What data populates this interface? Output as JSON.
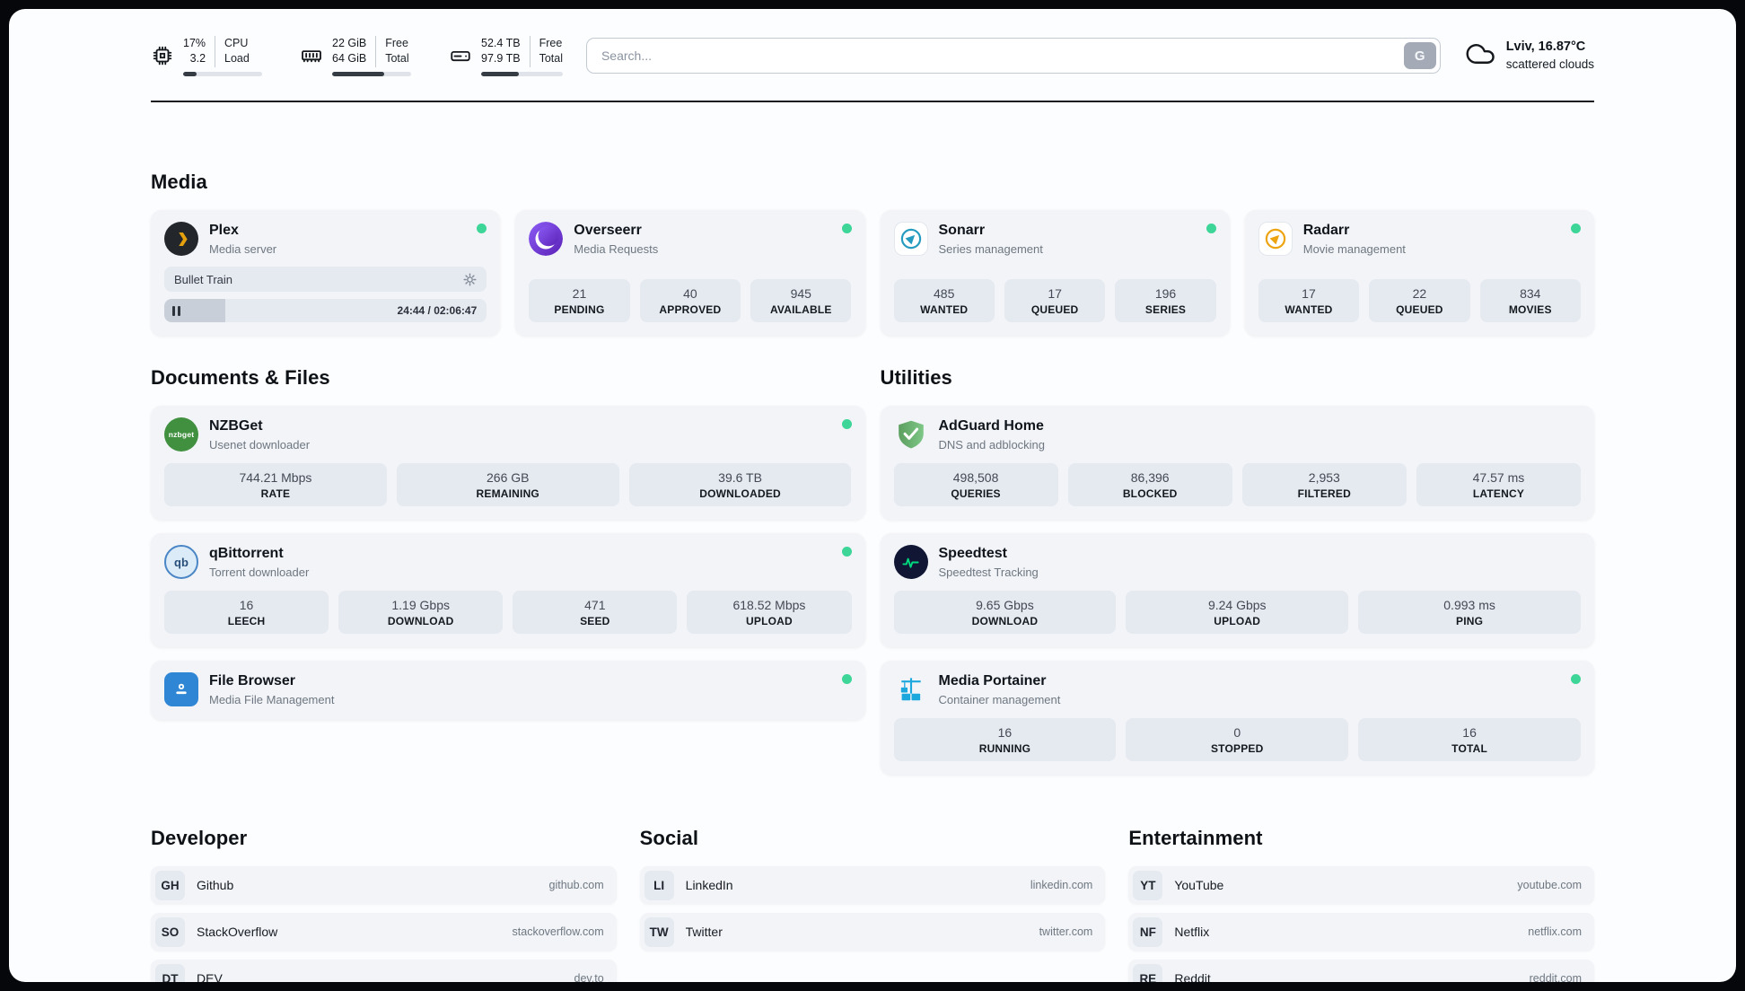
{
  "colors": {
    "status-online": "#3ed598",
    "plex-brand": "#e5a00d",
    "sonarr-brand": "#259bbf",
    "radarr-brand": "#eda410",
    "adguard-brand": "#67b279",
    "speedtest-pulse": "#00d97e",
    "portainer-brand": "#1ca8dd"
  },
  "topbar": {
    "cpu": {
      "icon": "cpu-chip-icon",
      "values": [
        "17%",
        "3.2"
      ],
      "labels": [
        "CPU",
        "Load"
      ],
      "usage_percent": 17
    },
    "ram": {
      "icon": "memory-icon",
      "values": [
        "22 GiB",
        "64 GiB"
      ],
      "labels": [
        "Free",
        "Total"
      ],
      "usage_percent": 66
    },
    "disk": {
      "icon": "hard-drive-icon",
      "values": [
        "52.4 TB",
        "97.9 TB"
      ],
      "labels": [
        "Free",
        "Total"
      ],
      "usage_percent": 46
    },
    "search": {
      "placeholder": "Search...",
      "button_label": "G"
    },
    "weather": {
      "icon": "cloud-icon",
      "location": "Lviv, 16.87°C",
      "condition": "scattered clouds"
    }
  },
  "media": {
    "title": "Media",
    "plex": {
      "name": "Plex",
      "subtitle": "Media server",
      "online": true,
      "now_playing": {
        "title": "Bullet Train",
        "elapsed": "24:44",
        "duration": "02:06:47",
        "time_display": "24:44 / 02:06:47",
        "progress_percent": 19
      }
    },
    "overseerr": {
      "name": "Overseerr",
      "subtitle": "Media Requests",
      "online": true,
      "stats": [
        {
          "value": "21",
          "label": "PENDING"
        },
        {
          "value": "40",
          "label": "APPROVED"
        },
        {
          "value": "945",
          "label": "AVAILABLE"
        }
      ]
    },
    "sonarr": {
      "name": "Sonarr",
      "subtitle": "Series management",
      "online": true,
      "stats": [
        {
          "value": "485",
          "label": "WANTED"
        },
        {
          "value": "17",
          "label": "QUEUED"
        },
        {
          "value": "196",
          "label": "SERIES"
        }
      ]
    },
    "radarr": {
      "name": "Radarr",
      "subtitle": "Movie management",
      "online": true,
      "stats": [
        {
          "value": "17",
          "label": "WANTED"
        },
        {
          "value": "22",
          "label": "QUEUED"
        },
        {
          "value": "834",
          "label": "MOVIES"
        }
      ]
    }
  },
  "documents": {
    "title": "Documents & Files",
    "nzbget": {
      "name": "NZBGet",
      "subtitle": "Usenet downloader",
      "online": true,
      "stats": [
        {
          "value": "744.21 Mbps",
          "label": "RATE"
        },
        {
          "value": "266 GB",
          "label": "REMAINING"
        },
        {
          "value": "39.6 TB",
          "label": "DOWNLOADED"
        }
      ]
    },
    "qbittorrent": {
      "name": "qBittorrent",
      "subtitle": "Torrent downloader",
      "online": true,
      "stats": [
        {
          "value": "16",
          "label": "LEECH"
        },
        {
          "value": "1.19 Gbps",
          "label": "DOWNLOAD"
        },
        {
          "value": "471",
          "label": "SEED"
        },
        {
          "value": "618.52 Mbps",
          "label": "UPLOAD"
        }
      ]
    },
    "filebrowser": {
      "name": "File Browser",
      "subtitle": "Media File Management",
      "online": true
    }
  },
  "utilities": {
    "title": "Utilities",
    "adguard": {
      "name": "AdGuard Home",
      "subtitle": "DNS and adblocking",
      "stats": [
        {
          "value": "498,508",
          "label": "QUERIES"
        },
        {
          "value": "86,396",
          "label": "BLOCKED"
        },
        {
          "value": "2,953",
          "label": "FILTERED"
        },
        {
          "value": "47.57 ms",
          "label": "LATENCY"
        }
      ]
    },
    "speedtest": {
      "name": "Speedtest",
      "subtitle": "Speedtest Tracking",
      "stats": [
        {
          "value": "9.65 Gbps",
          "label": "DOWNLOAD"
        },
        {
          "value": "9.24 Gbps",
          "label": "UPLOAD"
        },
        {
          "value": "0.993 ms",
          "label": "PING"
        }
      ]
    },
    "portainer": {
      "name": "Media Portainer",
      "subtitle": "Container management",
      "online": true,
      "stats": [
        {
          "value": "16",
          "label": "RUNNING"
        },
        {
          "value": "0",
          "label": "STOPPED"
        },
        {
          "value": "16",
          "label": "TOTAL"
        }
      ]
    }
  },
  "bookmarks": {
    "developer": {
      "title": "Developer",
      "items": [
        {
          "abbr": "GH",
          "name": "Github",
          "url": "github.com"
        },
        {
          "abbr": "SO",
          "name": "StackOverflow",
          "url": "stackoverflow.com"
        },
        {
          "abbr": "DT",
          "name": "DEV",
          "url": "dev.to"
        }
      ]
    },
    "social": {
      "title": "Social",
      "items": [
        {
          "abbr": "LI",
          "name": "LinkedIn",
          "url": "linkedin.com"
        },
        {
          "abbr": "TW",
          "name": "Twitter",
          "url": "twitter.com"
        }
      ]
    },
    "entertainment": {
      "title": "Entertainment",
      "items": [
        {
          "abbr": "YT",
          "name": "YouTube",
          "url": "youtube.com"
        },
        {
          "abbr": "NF",
          "name": "Netflix",
          "url": "netflix.com"
        },
        {
          "abbr": "RE",
          "name": "Reddit",
          "url": "reddit.com"
        }
      ]
    }
  }
}
